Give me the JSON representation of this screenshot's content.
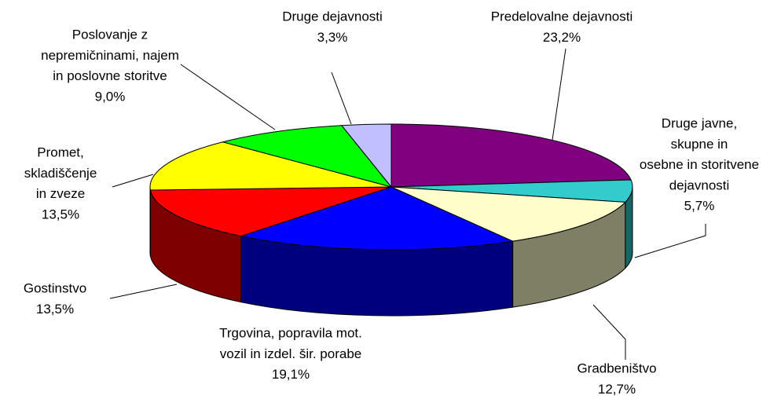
{
  "chart_data": {
    "type": "pie3d",
    "categories": [
      [
        "Predelovalne dejavnosti"
      ],
      [
        "Druge javne,",
        "skupne in",
        "osebne in storitvene",
        "dejavnosti"
      ],
      [
        "Gradbeništvo"
      ],
      [
        "Trgovina, popravila mot.",
        "vozil in izdel. šir. porabe"
      ],
      [
        "Gostinstvo"
      ],
      [
        "Promet,",
        "skladiščenje",
        "in zveze"
      ],
      [
        "Poslovanje z",
        "nepremičninami, najem",
        "in poslovne storitve"
      ],
      [
        "Druge dejavnosti"
      ]
    ],
    "values": [
      23.2,
      5.7,
      12.7,
      19.1,
      13.5,
      13.5,
      9.0,
      3.3
    ],
    "value_labels": [
      "23,2%",
      "5,7%",
      "12,7%",
      "19,1%",
      "13,5%",
      "13,5%",
      "9,0%",
      "3,3%"
    ],
    "colors": [
      "#800080",
      "#33CCCC",
      "#FFFFCC",
      "#0000FF",
      "#FF0000",
      "#FFFF00",
      "#00FF00",
      "#C0C0FF"
    ]
  }
}
